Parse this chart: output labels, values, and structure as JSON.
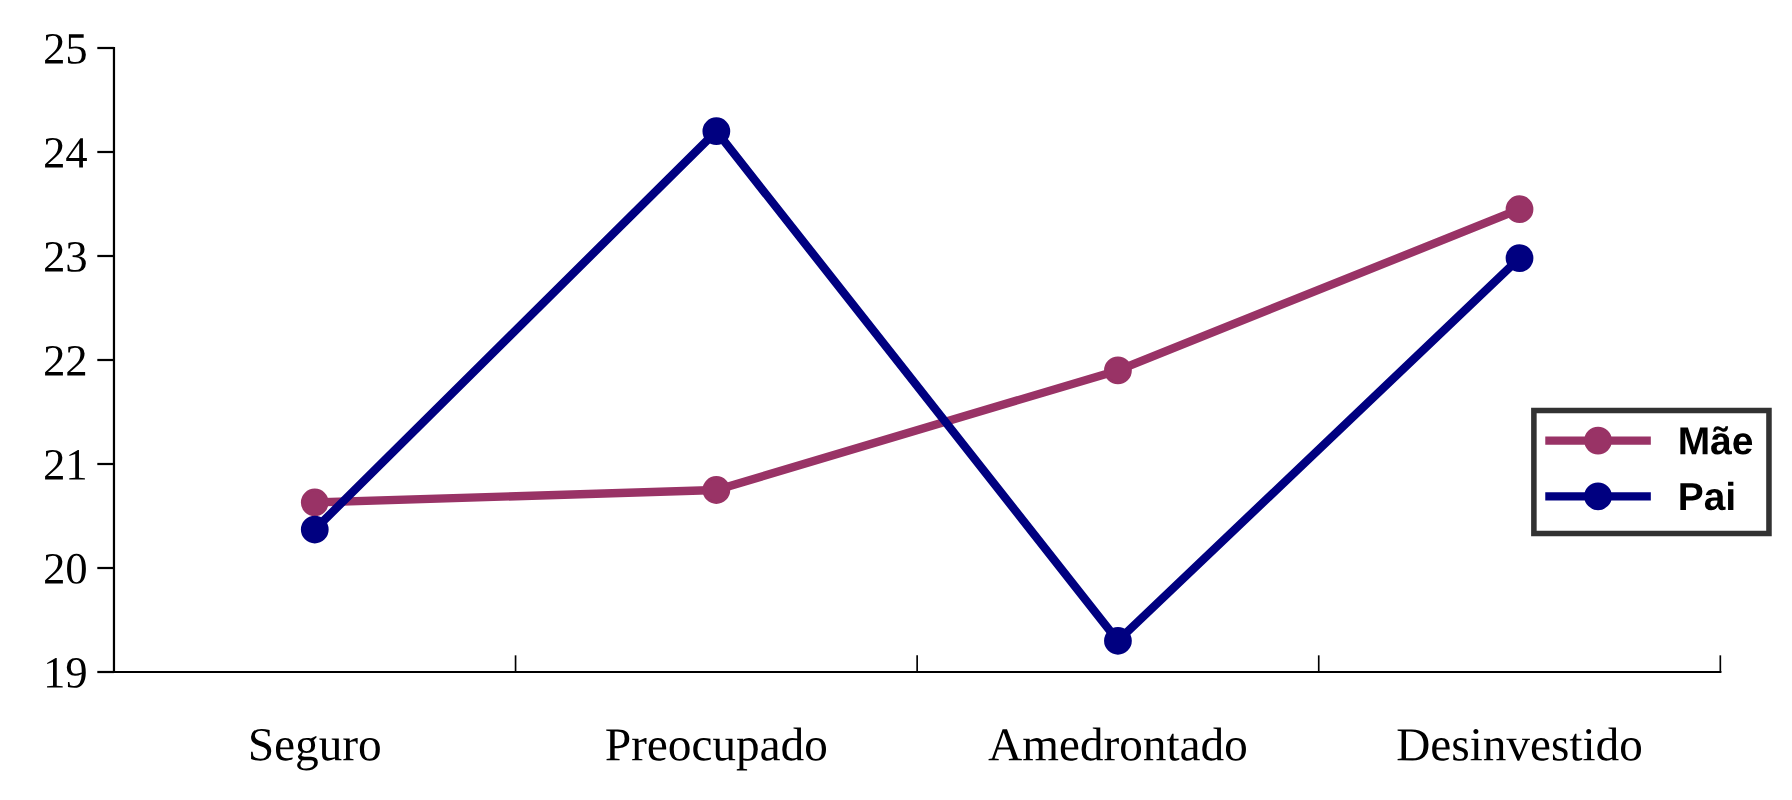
{
  "chart_data": {
    "type": "line",
    "categories": [
      "Seguro",
      "Preocupado",
      "Amedrontado",
      "Desinvestido"
    ],
    "series": [
      {
        "name": "Mãe",
        "color": "#993366",
        "values": [
          20.63,
          20.75,
          21.9,
          23.45
        ]
      },
      {
        "name": "Pai",
        "color": "#000080",
        "values": [
          20.37,
          24.2,
          19.3,
          22.98
        ]
      }
    ],
    "ylim": [
      19,
      25
    ],
    "yticks": [
      19,
      20,
      21,
      22,
      23,
      24,
      25
    ],
    "grid": false,
    "legend": "right",
    "marker": "circle",
    "line_style": "solid"
  }
}
